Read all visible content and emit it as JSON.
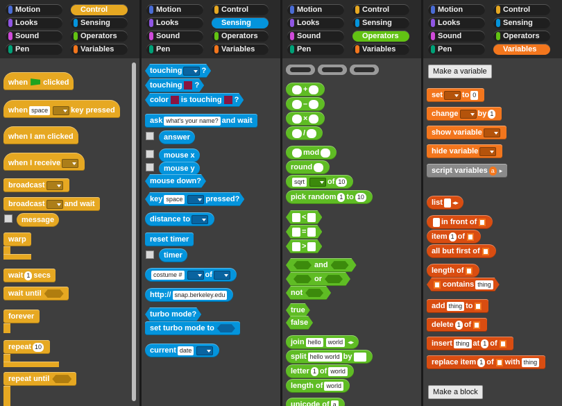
{
  "categories": [
    "Motion",
    "Control",
    "Looks",
    "Sensing",
    "Sound",
    "Operators",
    "Pen",
    "Variables"
  ],
  "cat_colors": {
    "Motion": "#4a6cd4",
    "Control": "#e6a822",
    "Looks": "#8f56e3",
    "Sensing": "#0494dc",
    "Sound": "#cf4ad9",
    "Operators": "#62c213",
    "Pen": "#00a178",
    "Variables": "#f3761d"
  },
  "panels": [
    {
      "selected": "Control"
    },
    {
      "selected": "Sensing"
    },
    {
      "selected": "Operators"
    },
    {
      "selected": "Variables"
    }
  ],
  "control": {
    "when_flag": [
      "when",
      "clicked"
    ],
    "when_key": [
      "when",
      "space",
      "key pressed"
    ],
    "when_clicked": "when I am clicked",
    "when_receive": "when I receive",
    "broadcast": "broadcast",
    "broadcast_wait": [
      "broadcast",
      "and wait"
    ],
    "message": "message",
    "warp": "warp",
    "wait_secs": [
      "wait",
      "1",
      "secs"
    ],
    "wait_until": "wait until",
    "forever": "forever",
    "repeat": [
      "repeat",
      "10"
    ],
    "repeat_until": "repeat until"
  },
  "sensing": {
    "touching": [
      "touching",
      "?"
    ],
    "touching_color": [
      "touching",
      "?"
    ],
    "color_touching": [
      "color",
      "is touching",
      "?"
    ],
    "ask": [
      "ask",
      "what's your name?",
      "and wait"
    ],
    "answer": "answer",
    "mouse_x": "mouse x",
    "mouse_y": "mouse y",
    "mouse_down": "mouse down?",
    "key_pressed": [
      "key",
      "space",
      "pressed?"
    ],
    "distance_to": "distance to",
    "reset_timer": "reset timer",
    "timer": "timer",
    "attr_of": [
      "costume #",
      "of"
    ],
    "http": [
      "http://",
      "snap.berkeley.edu"
    ],
    "turbo_mode": "turbo mode?",
    "set_turbo": "set turbo mode to",
    "current": [
      "current",
      "date"
    ]
  },
  "operators": {
    "plus": "+",
    "minus": "–",
    "times": "×",
    "divide": "/",
    "mod": "mod",
    "round": "round",
    "sqrt": [
      "sqrt",
      "of",
      "10"
    ],
    "pick_random": [
      "pick random",
      "1",
      "to",
      "10"
    ],
    "lt": "<",
    "eq": "=",
    "gt": ">",
    "and": "and",
    "or": "or",
    "not": "not",
    "true": "true",
    "false": "false",
    "join": [
      "join",
      "hello",
      "world"
    ],
    "split": [
      "split",
      "hello world",
      "by"
    ],
    "letter": [
      "letter",
      "1",
      "of",
      "world"
    ],
    "length_of": [
      "length of",
      "world"
    ],
    "unicode": [
      "unicode of",
      "a"
    ]
  },
  "variables": {
    "make_variable": "Make a variable",
    "set": [
      "set",
      "to",
      "0"
    ],
    "change": [
      "change",
      "by",
      "1"
    ],
    "show_variable": "show variable",
    "hide_variable": "hide variable",
    "script_variables": [
      "script variables",
      "a"
    ],
    "list": "list",
    "in_front_of": [
      "in front of"
    ],
    "item": [
      "item",
      "1",
      "of"
    ],
    "all_but_first": "all but first of",
    "length": "length of",
    "contains": [
      "contains",
      "thing"
    ],
    "add": [
      "add",
      "thing",
      "to"
    ],
    "delete": [
      "delete",
      "1",
      "of"
    ],
    "insert": [
      "insert",
      "thing",
      "at",
      "1",
      "of"
    ],
    "replace": [
      "replace item",
      "1",
      "of",
      "with",
      "thing"
    ],
    "make_block": "Make a block"
  }
}
